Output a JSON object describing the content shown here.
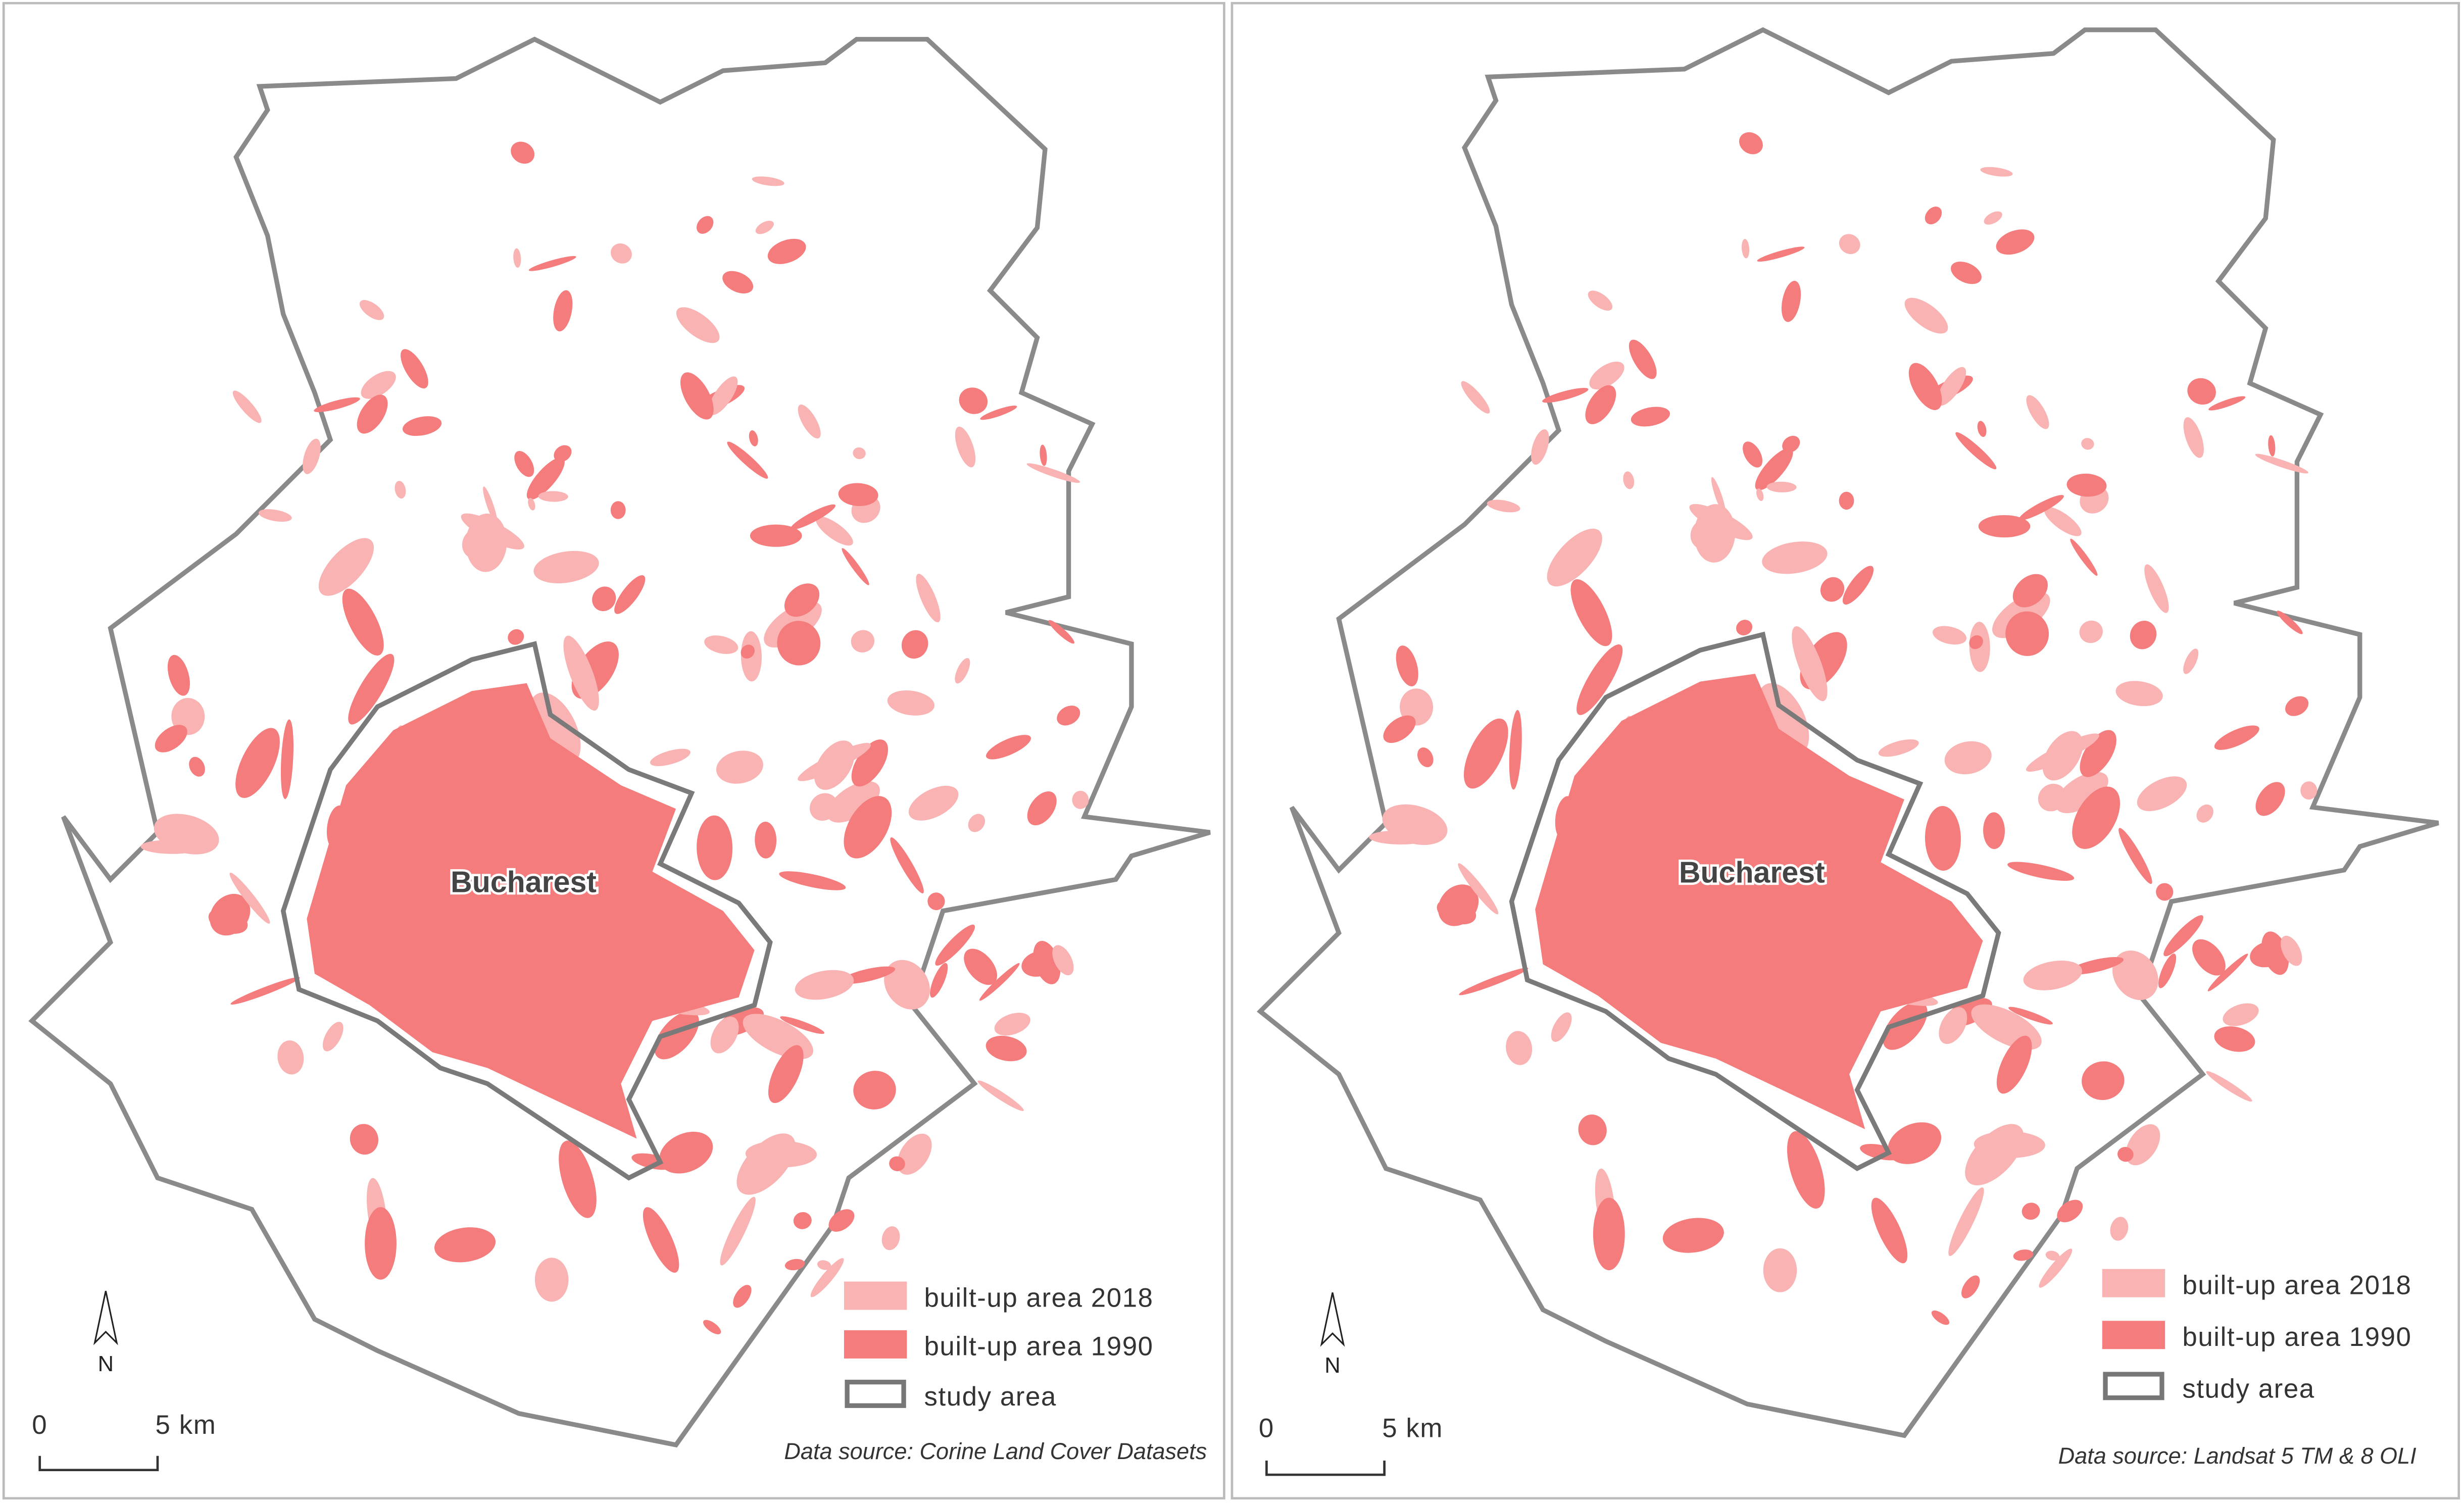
{
  "panels": [
    {
      "city_label": "Bucharest",
      "north_label": "N",
      "scale": {
        "start": "0",
        "end": "5 km"
      },
      "legend": [
        "built-up area 2018",
        "built-up area 1990",
        "study area"
      ],
      "source": "Data source: Corine Land Cover Datasets"
    },
    {
      "city_label": "Bucharest",
      "north_label": "N",
      "scale": {
        "start": "0",
        "end": "5 km"
      },
      "legend": [
        "built-up area 2018",
        "built-up area 1990",
        "study area"
      ],
      "source": "Data source: Landsat 5 TM & 8 OLI"
    }
  ]
}
